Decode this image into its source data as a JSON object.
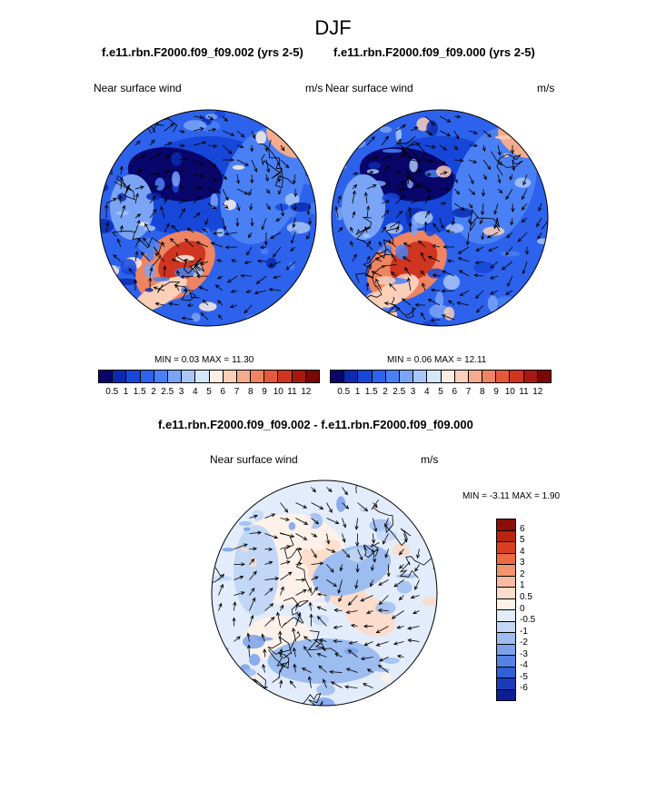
{
  "figure": {
    "title": "DJF",
    "panel_left": {
      "case": "f.e11.rbn.F2000.f09_f09.002 (yrs 2-5)",
      "variable": "Near surface wind",
      "units": "m/s",
      "min_label": "MIN =",
      "min_value": "0.03",
      "max_label": "MAX =",
      "max_value": "11.30"
    },
    "panel_right": {
      "case": "f.e11.rbn.F2000.f09_f09.000 (yrs 2-5)",
      "variable": "Near surface wind",
      "units": "m/s",
      "min_label": "MIN =",
      "min_value": "0.06",
      "max_label": "MAX =",
      "max_value": "12.11"
    },
    "panel_diff": {
      "case": "f.e11.rbn.F2000.f09_f09.002 - f.e11.rbn.F2000.f09_f09.000",
      "variable": "Near surface wind",
      "units": "m/s",
      "min_label": "MIN =",
      "min_value": "-3.11",
      "max_label": "MAX =",
      "max_value": "1.90"
    }
  },
  "chart_data": [
    {
      "type": "heatmap",
      "title": "f.e11.rbn.F2000.f09_f09.002 (yrs 2-5)",
      "projection": "polar stereographic, north pole",
      "field": "Near surface wind speed with wind vectors",
      "units": "m/s",
      "min": 0.03,
      "max": 11.3,
      "colorbar_levels": [
        "0.5",
        "1",
        "1.5",
        "2",
        "2.5",
        "3",
        "4",
        "5",
        "6",
        "7",
        "8",
        "9",
        "10",
        "11",
        "12"
      ],
      "colorbar_colors": [
        "#08066b",
        "#0a2bb0",
        "#1747d8",
        "#2d62ec",
        "#4a80f5",
        "#7aa5f7",
        "#a9c6f8",
        "#d6e6fa",
        "#fdeee4",
        "#fbcfb8",
        "#f5ab8d",
        "#ef8462",
        "#e65a3b",
        "#cf3520",
        "#a8180f",
        "#7a0906"
      ],
      "legend": "bottom"
    },
    {
      "type": "heatmap",
      "title": "f.e11.rbn.F2000.f09_f09.000 (yrs 2-5)",
      "projection": "polar stereographic, north pole",
      "field": "Near surface wind speed with wind vectors",
      "units": "m/s",
      "min": 0.06,
      "max": 12.11,
      "colorbar_levels": [
        "0.5",
        "1",
        "1.5",
        "2",
        "2.5",
        "3",
        "4",
        "5",
        "6",
        "7",
        "8",
        "9",
        "10",
        "11",
        "12"
      ],
      "colorbar_colors": [
        "#08066b",
        "#0a2bb0",
        "#1747d8",
        "#2d62ec",
        "#4a80f5",
        "#7aa5f7",
        "#a9c6f8",
        "#d6e6fa",
        "#fdeee4",
        "#fbcfb8",
        "#f5ab8d",
        "#ef8462",
        "#e65a3b",
        "#cf3520",
        "#a8180f",
        "#7a0906"
      ],
      "legend": "bottom"
    },
    {
      "type": "heatmap",
      "title": "f.e11.rbn.F2000.f09_f09.002 - f.e11.rbn.F2000.f09_f09.000",
      "projection": "polar stereographic, north pole",
      "field": "Near surface wind speed difference with wind vector difference",
      "units": "m/s",
      "min": -3.11,
      "max": 1.9,
      "colorbar_levels": [
        "6",
        "5",
        "4",
        "3",
        "2",
        "1",
        "0.5",
        "0",
        "-0.5",
        "-1",
        "-2",
        "-3",
        "-4",
        "-5",
        "-6"
      ],
      "colorbar_colors": [
        "#8c0e08",
        "#b8240f",
        "#d8401f",
        "#ec6a42",
        "#f39470",
        "#f8bba0",
        "#fcdcca",
        "#fdf1e9",
        "#e3ecfa",
        "#c2d7f6",
        "#9dbdf1",
        "#7aa1ea",
        "#5582e3",
        "#3460d6",
        "#1a3cbc",
        "#0a1f96"
      ],
      "legend": "right"
    }
  ]
}
